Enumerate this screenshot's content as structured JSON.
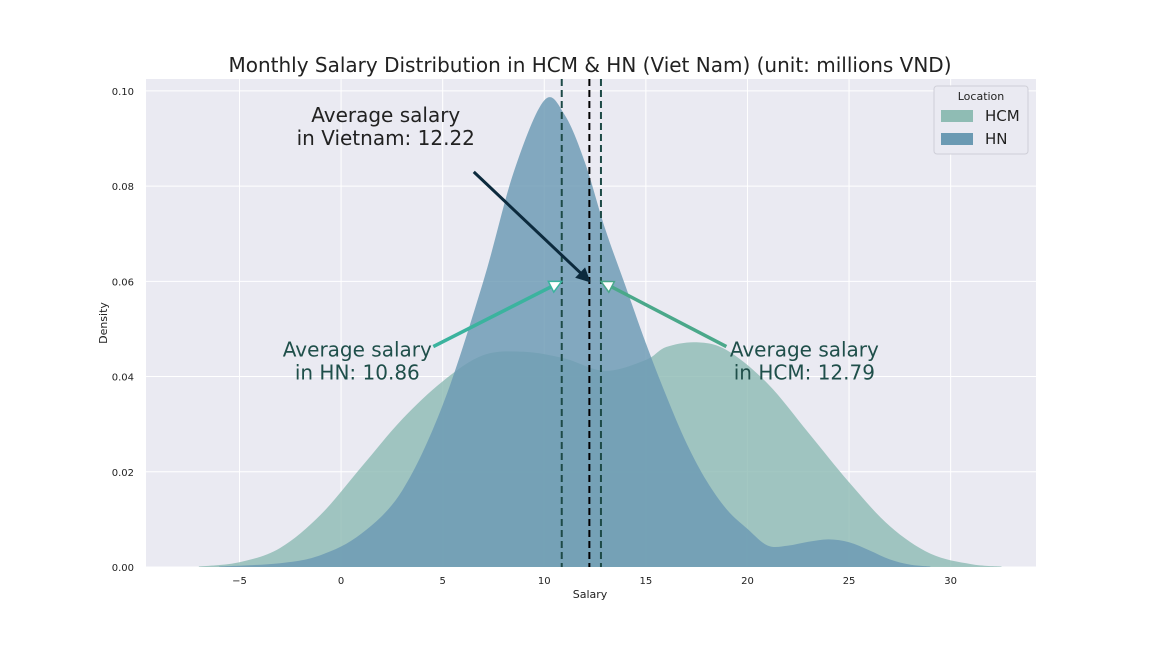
{
  "chart_data": {
    "type": "area",
    "title": "Monthly Salary Distribution in HCM & HN (Viet Nam) (unit: millions VND)",
    "xlabel": "Salary",
    "ylabel": "Density",
    "xlim": [
      -9.6,
      34.2
    ],
    "ylim": [
      0,
      0.1025
    ],
    "x_ticks": [
      -5,
      0,
      5,
      10,
      15,
      20,
      25,
      30
    ],
    "x_tick_labels": [
      "−5",
      "0",
      "5",
      "10",
      "15",
      "20",
      "25",
      "30"
    ],
    "y_ticks": [
      0.0,
      0.02,
      0.04,
      0.06,
      0.08,
      0.1
    ],
    "y_tick_labels": [
      "0.00",
      "0.02",
      "0.04",
      "0.06",
      "0.08",
      "0.10"
    ],
    "grid": true,
    "legend": {
      "title": "Location",
      "placement": "top-right"
    },
    "series": [
      {
        "name": "HCM",
        "color": "#8fbcb4",
        "x": [
          -7,
          -5,
          -3,
          -1,
          1,
          3,
          5,
          7,
          9,
          11,
          13,
          15,
          16,
          17.5,
          19,
          21,
          23,
          25,
          27,
          29,
          31,
          32.5
        ],
        "y": [
          0.0001,
          0.001,
          0.004,
          0.011,
          0.021,
          0.031,
          0.039,
          0.0445,
          0.0452,
          0.0438,
          0.0412,
          0.0435,
          0.0462,
          0.0472,
          0.0455,
          0.0385,
          0.0282,
          0.0178,
          0.0086,
          0.0028,
          0.0006,
          0.0001
        ]
      },
      {
        "name": "HN",
        "color": "#6b9ab3",
        "x": [
          -6,
          -3,
          -1,
          1,
          3,
          5,
          7,
          8.5,
          10,
          11,
          12,
          13,
          14,
          15,
          16,
          17,
          18,
          19,
          20,
          21,
          22,
          23,
          24,
          25,
          26,
          27,
          28,
          29
        ],
        "y": [
          0.0001,
          0.0008,
          0.0025,
          0.007,
          0.016,
          0.034,
          0.06,
          0.083,
          0.098,
          0.095,
          0.085,
          0.071,
          0.059,
          0.047,
          0.036,
          0.026,
          0.018,
          0.012,
          0.008,
          0.0045,
          0.0045,
          0.0053,
          0.0058,
          0.0052,
          0.0035,
          0.0016,
          0.0005,
          0.0001
        ]
      }
    ],
    "vlines": [
      {
        "x": 10.86,
        "color": "#1d4a47",
        "style": "dashed"
      },
      {
        "x": 12.22,
        "color": "#000000",
        "style": "dashed"
      },
      {
        "x": 12.79,
        "color": "#1d4a47",
        "style": "dashed"
      }
    ],
    "annotations": [
      {
        "lines": [
          "Average salary",
          "in Vietnam: 12.22"
        ],
        "text_at": [
          2.2,
          0.0935
        ],
        "point_to": [
          12.22,
          0.06
        ],
        "arrow_color": "#0c2a3d",
        "text_color": "#222222",
        "align": "middle"
      },
      {
        "lines": [
          "Average salary",
          "in HN: 10.86"
        ],
        "text_at": [
          0.8,
          0.0442
        ],
        "point_to": [
          10.86,
          0.06
        ],
        "arrow_color": "#3bb39e",
        "text_color": "#1f4f4a",
        "align": "middle"
      },
      {
        "lines": [
          "Average salary",
          "in HCM: 12.79"
        ],
        "text_at": [
          22.8,
          0.0442
        ],
        "point_to": [
          12.79,
          0.06
        ],
        "arrow_color": "#4aa88a",
        "text_color": "#1f4f4a",
        "align": "middle"
      }
    ]
  }
}
